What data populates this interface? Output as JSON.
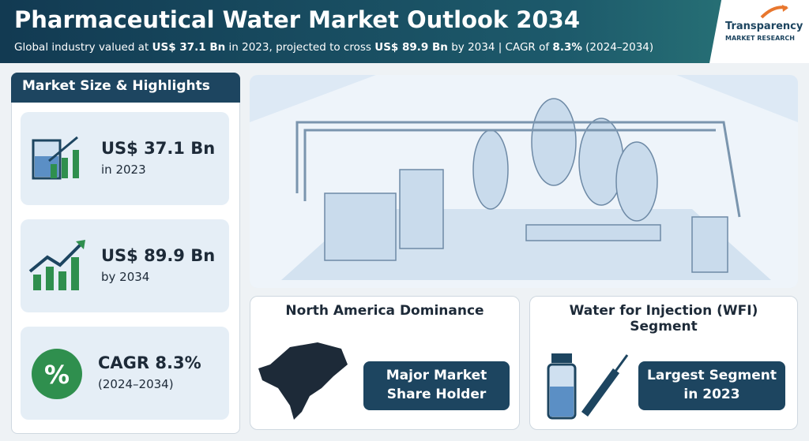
{
  "header": {
    "title": "Pharmaceutical Water Market Outlook 2034",
    "subtitle": [
      {
        "text": "Global industry valued at ",
        "bold": false
      },
      {
        "text": "US$ 37.1 Bn",
        "bold": true
      },
      {
        "text": " in 2023, projected to cross ",
        "bold": false
      },
      {
        "text": "US$ 89.9 Bn",
        "bold": true
      },
      {
        "text": " by 2034 | CAGR of ",
        "bold": false
      },
      {
        "text": "8.3%",
        "bold": true
      },
      {
        "text": " (2024–2034)",
        "bold": false
      }
    ],
    "logo": {
      "name": "Transparency",
      "tagline": "MARKET RESEARCH"
    }
  },
  "highlights": {
    "title": "Market Size & Highlights",
    "items": [
      {
        "value": "US$ 37.1 Bn",
        "label": "in 2023"
      },
      {
        "value": "US$ 89.9 Bn",
        "label": "by 2034"
      },
      {
        "value": "CAGR 8.3%",
        "label": "(2024–2034)"
      }
    ]
  },
  "cards": [
    {
      "title": "North America Dominance",
      "badge": "Major Market Share Holder"
    },
    {
      "title": "Water for Injection (WFI) Segment",
      "badge": "Largest Segment in 2023"
    }
  ]
}
